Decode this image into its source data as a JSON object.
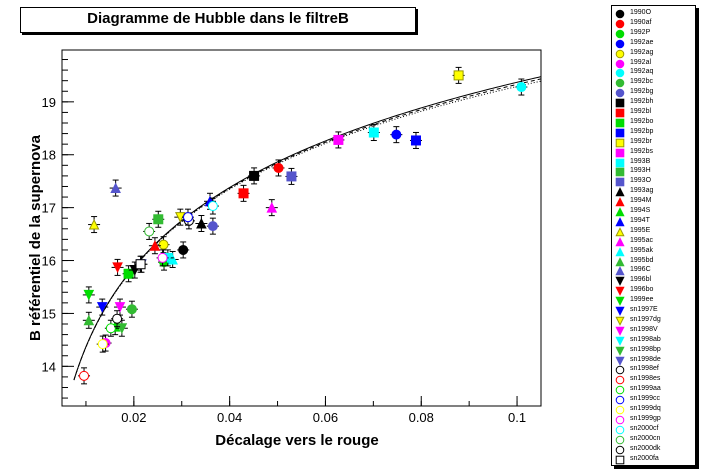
{
  "chart_data": {
    "type": "scatter",
    "title": "Diagramme de Hubble dans le filtreB",
    "xlabel": "Décalage vers le rouge",
    "ylabel": "B référentiel de la supernova",
    "xlim": [
      0.005,
      0.105
    ],
    "ylim": [
      13.25,
      19.98
    ],
    "xticks": [
      0.02,
      0.04,
      0.06,
      0.08,
      0.1
    ],
    "xtick_labels": [
      "0.02",
      "0.04",
      "0.06",
      "0.08",
      "0.1"
    ],
    "yticks": [
      14,
      15,
      16,
      17,
      18,
      19
    ],
    "ytick_labels": [
      "14",
      "15",
      "16",
      "17",
      "18",
      "19"
    ],
    "grid": false,
    "legend_position": "right",
    "series": [
      {
        "name": "1990O",
        "color": "#000000",
        "marker": "circle",
        "points": [
          [
            0.0303,
            16.2
          ]
        ]
      },
      {
        "name": "1990af",
        "color": "#ff0000",
        "marker": "circle",
        "points": [
          [
            0.0502,
            17.75
          ]
        ]
      },
      {
        "name": "1992P",
        "color": "#00dd00",
        "marker": "circle",
        "points": [
          [
            0.0263,
            15.97
          ]
        ]
      },
      {
        "name": "1992ae",
        "color": "#0000ff",
        "marker": "circle",
        "points": [
          [
            0.0748,
            18.38
          ]
        ]
      },
      {
        "name": "1992ag",
        "color": "#ffff00",
        "marker": "circle",
        "points": [
          [
            0.0262,
            16.3
          ]
        ]
      },
      {
        "name": "1992al",
        "color": "#ff00ff",
        "marker": "circle",
        "points": [
          [
            0.0141,
            14.44
          ]
        ]
      },
      {
        "name": "1992aq",
        "color": "#00ffff",
        "marker": "circle",
        "points": [
          [
            0.1009,
            19.28
          ]
        ]
      },
      {
        "name": "1992bc",
        "color": "#33bb33",
        "marker": "circle",
        "points": [
          [
            0.0196,
            15.08
          ]
        ]
      },
      {
        "name": "1992bg",
        "color": "#5555cc",
        "marker": "circle",
        "points": [
          [
            0.0365,
            16.65
          ]
        ]
      },
      {
        "name": "1992bh",
        "color": "#000000",
        "marker": "square",
        "points": [
          [
            0.0451,
            17.6
          ]
        ]
      },
      {
        "name": "1992bl",
        "color": "#ff0000",
        "marker": "square",
        "points": [
          [
            0.0429,
            17.27
          ]
        ]
      },
      {
        "name": "1992bo",
        "color": "#00dd00",
        "marker": "square",
        "points": [
          [
            0.0189,
            15.75
          ]
        ]
      },
      {
        "name": "1992bp",
        "color": "#0000ff",
        "marker": "square",
        "points": [
          [
            0.0789,
            18.27
          ]
        ]
      },
      {
        "name": "1992br",
        "color": "#ffff00",
        "marker": "square",
        "points": [
          [
            0.0878,
            19.5
          ]
        ]
      },
      {
        "name": "1992bs",
        "color": "#ff00ff",
        "marker": "square",
        "points": [
          [
            0.0627,
            18.28
          ]
        ]
      },
      {
        "name": "1993B",
        "color": "#00ffff",
        "marker": "square",
        "points": [
          [
            0.0701,
            18.42
          ]
        ]
      },
      {
        "name": "1993H",
        "color": "#33bb33",
        "marker": "square",
        "points": [
          [
            0.0251,
            16.78
          ]
        ]
      },
      {
        "name": "1993O",
        "color": "#5555cc",
        "marker": "square",
        "points": [
          [
            0.0529,
            17.59
          ]
        ]
      },
      {
        "name": "1993ag",
        "color": "#000000",
        "marker": "triangle-up",
        "points": [
          [
            0.0341,
            16.7
          ]
        ]
      },
      {
        "name": "1994M",
        "color": "#ff0000",
        "marker": "triangle-up",
        "points": [
          [
            0.0244,
            16.28
          ]
        ]
      },
      {
        "name": "1994S",
        "color": "#00dd00",
        "marker": "triangle-up",
        "points": [
          [
            0.0161,
            14.75
          ]
        ]
      },
      {
        "name": "1994T",
        "color": "#0000ff",
        "marker": "triangle-up",
        "points": [
          [
            0.0359,
            17.12
          ]
        ]
      },
      {
        "name": "1995E",
        "color": "#ffff00",
        "marker": "triangle-up",
        "points": [
          [
            0.0117,
            16.68
          ]
        ]
      },
      {
        "name": "1995ac",
        "color": "#ff00ff",
        "marker": "triangle-up",
        "points": [
          [
            0.0488,
            17.0
          ]
        ]
      },
      {
        "name": "1995ak",
        "color": "#00ffff",
        "marker": "triangle-up",
        "points": [
          [
            0.0281,
            16.02
          ]
        ]
      },
      {
        "name": "1995bd",
        "color": "#33bb33",
        "marker": "triangle-up",
        "points": [
          [
            0.0106,
            14.87
          ]
        ]
      },
      {
        "name": "1996C",
        "color": "#5555cc",
        "marker": "triangle-up",
        "points": [
          [
            0.0162,
            17.37
          ]
        ]
      },
      {
        "name": "1996bl",
        "color": "#000000",
        "marker": "triangle-down",
        "points": [
          [
            0.0202,
            15.82
          ]
        ]
      },
      {
        "name": "1996bo",
        "color": "#ff0000",
        "marker": "triangle-down",
        "points": [
          [
            0.0166,
            15.87
          ]
        ]
      },
      {
        "name": "1999ee",
        "color": "#00dd00",
        "marker": "triangle-down",
        "points": [
          [
            0.0106,
            15.35
          ]
        ]
      },
      {
        "name": "sn1997E",
        "color": "#0000ff",
        "marker": "triangle-down",
        "points": [
          [
            0.0134,
            15.12
          ]
        ]
      },
      {
        "name": "sn1997dg",
        "color": "#ffff00",
        "marker": "triangle-down",
        "points": [
          [
            0.0297,
            16.82
          ]
        ]
      },
      {
        "name": "sn1998V",
        "color": "#ff00ff",
        "marker": "triangle-down",
        "points": [
          [
            0.0171,
            15.12
          ]
        ]
      },
      {
        "name": "sn1998ab",
        "color": "#00ffff",
        "marker": "triangle-down",
        "points": [
          [
            0.0271,
            16.05
          ]
        ]
      },
      {
        "name": "sn1998bp",
        "color": "#33bb33",
        "marker": "triangle-down",
        "points": [
          [
            0.0175,
            14.72
          ]
        ]
      },
      {
        "name": "sn1998de",
        "color": "#5555cc",
        "marker": "triangle-down",
        "points": [
          [
            0.0216,
            15.93
          ]
        ]
      },
      {
        "name": "sn1998ef",
        "color": "#000000",
        "marker": "open-circle",
        "points": [
          [
            0.0315,
            16.75
          ]
        ]
      },
      {
        "name": "sn1998es",
        "color": "#ff0000",
        "marker": "open-circle",
        "points": [
          [
            0.0096,
            13.82
          ]
        ]
      },
      {
        "name": "sn1999aa",
        "color": "#00dd00",
        "marker": "open-circle",
        "points": [
          [
            0.0152,
            14.72
          ]
        ]
      },
      {
        "name": "sn1999cc",
        "color": "#0000ff",
        "marker": "open-circle",
        "points": [
          [
            0.0313,
            16.82
          ]
        ]
      },
      {
        "name": "sn1999dq",
        "color": "#ffff00",
        "marker": "open-circle",
        "points": [
          [
            0.0135,
            14.42
          ]
        ]
      },
      {
        "name": "sn1999gp",
        "color": "#ff00ff",
        "marker": "open-circle",
        "points": [
          [
            0.026,
            16.05
          ]
        ]
      },
      {
        "name": "sn2000cf",
        "color": "#00ffff",
        "marker": "open-circle",
        "points": [
          [
            0.0365,
            17.03
          ]
        ]
      },
      {
        "name": "sn2000cn",
        "color": "#33bb33",
        "marker": "open-circle",
        "points": [
          [
            0.0232,
            16.55
          ]
        ]
      },
      {
        "name": "sn2000dk",
        "color": "#000000",
        "marker": "open-circle",
        "points": [
          [
            0.0165,
            14.9
          ]
        ]
      },
      {
        "name": "sn2000fa",
        "color": "#000000",
        "marker": "open-square",
        "points": [
          [
            0.0214,
            15.93
          ]
        ]
      }
    ],
    "curves": [
      {
        "style": "solid",
        "color": "#000000"
      },
      {
        "style": "dashed",
        "color": "#000000"
      },
      {
        "style": "dotted",
        "color": "#000000"
      }
    ]
  }
}
